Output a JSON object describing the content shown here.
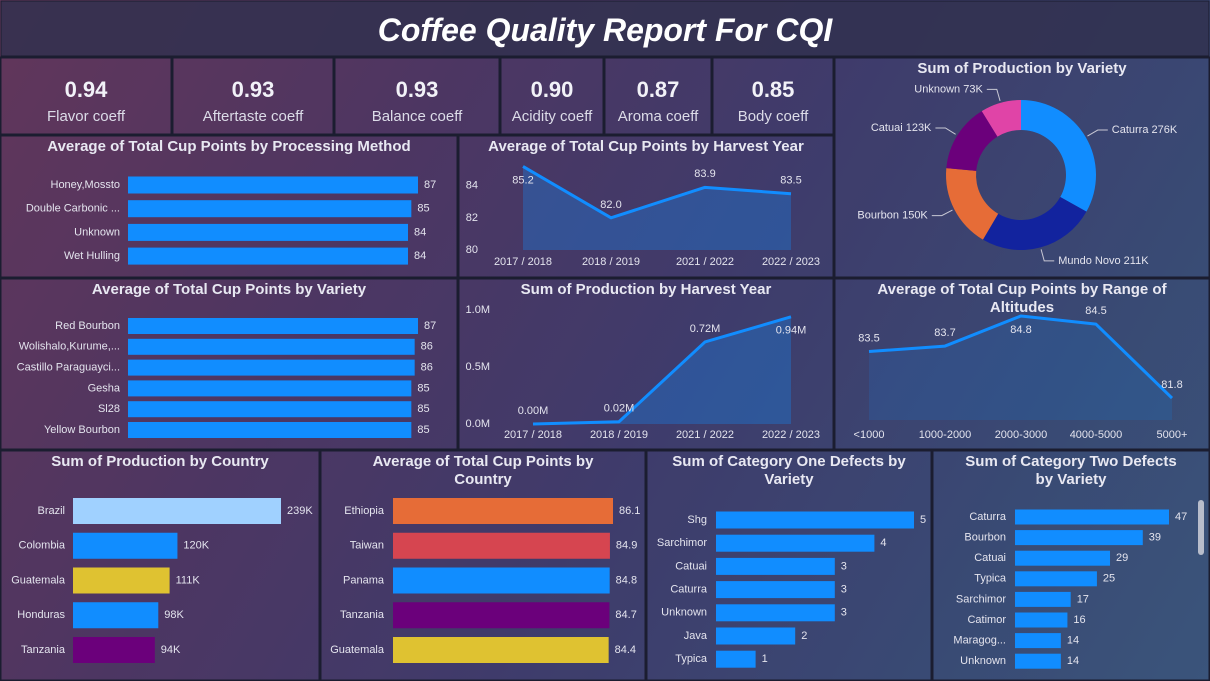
{
  "title": "Coffee Quality Report For CQI",
  "kpis": [
    {
      "value": "0.94",
      "label": "Flavor coeff"
    },
    {
      "value": "0.93",
      "label": "Aftertaste coeff"
    },
    {
      "value": "0.93",
      "label": "Balance coeff"
    },
    {
      "value": "0.90",
      "label": "Acidity coeff"
    },
    {
      "value": "0.87",
      "label": "Aroma coeff"
    },
    {
      "value": "0.85",
      "label": "Body coeff"
    }
  ],
  "chart_data": [
    {
      "type": "bar",
      "orientation": "horizontal",
      "title": "Average of Total Cup Points by Processing Method",
      "categories": [
        "Honey,Mossto",
        "Double Carbonic ...",
        "Unknown",
        "Wet Hulling"
      ],
      "values": [
        87,
        85,
        84,
        84
      ],
      "color": "#118dff"
    },
    {
      "type": "area",
      "title": "Average of Total Cup Points by Harvest Year",
      "categories": [
        "2017 / 2018",
        "2018 / 2019",
        "2021 / 2022",
        "2022 / 2023"
      ],
      "values": [
        85.2,
        82.0,
        83.9,
        83.5
      ],
      "value_labels": [
        "85.2",
        "82.0",
        "83.9",
        "83.5"
      ],
      "color": "#118dff",
      "ylim": [
        80,
        85.6
      ],
      "yticks": [
        80,
        82,
        84
      ]
    },
    {
      "type": "donut",
      "title": "Sum of Production by Variety",
      "categories": [
        "Caturra",
        "Mundo Novo",
        "Bourbon",
        "Catuai",
        "Unknown"
      ],
      "values": [
        276000,
        211000,
        150000,
        123000,
        73000
      ],
      "value_labels": [
        "276K",
        "211K",
        "150K",
        "123K",
        "73K"
      ],
      "colors": [
        "#118dff",
        "#12239e",
        "#e66c37",
        "#6b007b",
        "#e044a7"
      ]
    },
    {
      "type": "bar",
      "orientation": "horizontal",
      "title": "Average of Total Cup Points by Variety",
      "categories": [
        "Red Bourbon",
        "Wolishalo,Kurume,...",
        "Castillo Paraguayci...",
        "Gesha",
        "Sl28",
        "Yellow Bourbon"
      ],
      "values": [
        87,
        86,
        86,
        85,
        85,
        85
      ],
      "color": "#118dff"
    },
    {
      "type": "area",
      "title": "Sum of Production by Harvest Year",
      "categories": [
        "2017 / 2018",
        "2018 / 2019",
        "2021 / 2022",
        "2022 / 2023"
      ],
      "values": [
        0,
        20000,
        720000,
        940000
      ],
      "value_labels": [
        "0.00M",
        "0.02M",
        "0.72M",
        "0.94M"
      ],
      "color": "#118dff",
      "ylim": [
        0,
        1000000
      ],
      "yticks": [
        {
          "value": 0,
          "label": "0.0M"
        },
        {
          "value": 500000,
          "label": "0.5M"
        },
        {
          "value": 1000000,
          "label": "1.0M"
        }
      ]
    },
    {
      "type": "area",
      "title": "Average of Total Cup Points by Range of Altitudes",
      "categories": [
        "<1000",
        "1000-2000",
        "2000-3000",
        "4000-5000",
        "5000+"
      ],
      "values": [
        83.5,
        83.7,
        84.8,
        84.5,
        81.8
      ],
      "color": "#118dff"
    },
    {
      "type": "bar",
      "orientation": "horizontal",
      "title": "Sum of Production by Country",
      "categories": [
        "Brazil",
        "Colombia",
        "Guatemala",
        "Honduras",
        "Tanzania"
      ],
      "values": [
        239000,
        120000,
        111000,
        98000,
        94000
      ],
      "value_labels": [
        "239K",
        "120K",
        "111K",
        "98K",
        "94K"
      ],
      "colors": [
        "#a0d1ff",
        "#118dff",
        "#dfc231",
        "#118dff",
        "#6b007b"
      ]
    },
    {
      "type": "bar",
      "orientation": "horizontal",
      "title": "Average of Total Cup Points by Country",
      "categories": [
        "Ethiopia",
        "Taiwan",
        "Panama",
        "Tanzania",
        "Guatemala"
      ],
      "values": [
        86.1,
        84.9,
        84.8,
        84.7,
        84.4
      ],
      "colors": [
        "#e66c37",
        "#d64550",
        "#118dff",
        "#6b007b",
        "#dfc231"
      ]
    },
    {
      "type": "bar",
      "orientation": "horizontal",
      "title": "Sum of Category One Defects by Variety",
      "categories": [
        "Shg",
        "Sarchimor",
        "Catuai",
        "Caturra",
        "Unknown",
        "Java",
        "Typica"
      ],
      "values": [
        5,
        4,
        3,
        3,
        3,
        2,
        1
      ],
      "color": "#118dff"
    },
    {
      "type": "bar",
      "orientation": "horizontal",
      "title": "Sum of Category Two Defects by Variety",
      "categories": [
        "Caturra",
        "Bourbon",
        "Catuai",
        "Typica",
        "Sarchimor",
        "Catimor",
        "Maragog...",
        "Unknown"
      ],
      "values": [
        47,
        39,
        29,
        25,
        17,
        16,
        14,
        14
      ],
      "color": "#118dff"
    }
  ]
}
